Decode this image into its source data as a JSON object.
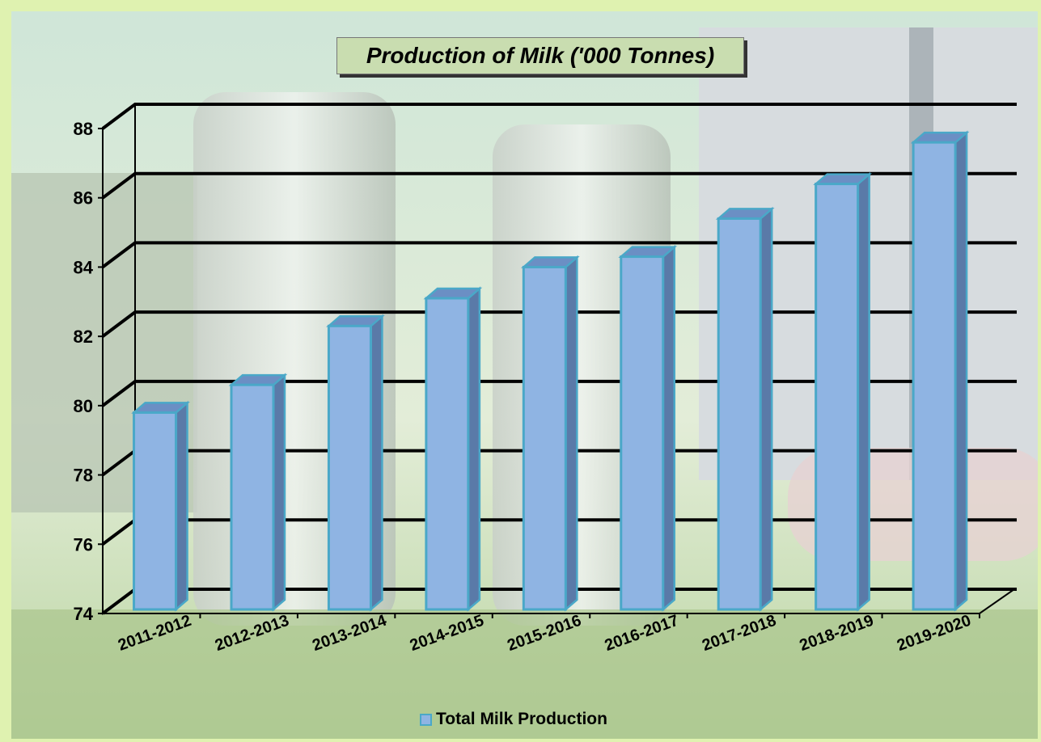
{
  "chart_data": {
    "type": "bar",
    "title": "Production of Milk ('000 Tonnes)",
    "xlabel": "",
    "ylabel": "",
    "categories": [
      "2011-2012",
      "2012-2013",
      "2013-2014",
      "2014-2015",
      "2015-2016",
      "2016-2017",
      "2017-2018",
      "2018-2019",
      "2019-2020"
    ],
    "series": [
      {
        "name": "Total Milk Production",
        "values": [
          79.8,
          80.6,
          82.3,
          83.1,
          84.0,
          84.3,
          85.4,
          86.4,
          87.6
        ]
      }
    ],
    "ylim": [
      74,
      88
    ],
    "yticks": [
      "74",
      "76",
      "78",
      "80",
      "82",
      "84",
      "86",
      "88"
    ],
    "grid": true,
    "legend": "bottom",
    "style": "3d-column",
    "colors": {
      "bar_front": "#8fb4e3",
      "bar_side": "#5a7aa8",
      "bar_top": "#6b8fc4",
      "bar_outline": "#4aa8c8",
      "grid": "#000000"
    }
  }
}
